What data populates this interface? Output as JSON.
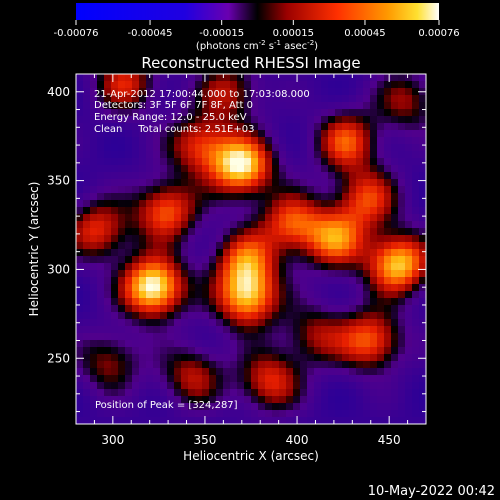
{
  "chart_data": {
    "type": "heatmap",
    "title": "Reconstructed RHESSI Image",
    "colorbar": {
      "ticks": [
        "-0.00076",
        "-0.00045",
        "-0.00015",
        "0.00015",
        "0.00045",
        "0.00076"
      ],
      "units_prefix": "(photons cm",
      "units_e1": "-2",
      "units_mid": " s",
      "units_e2": "-1",
      "units_mid2": " asec",
      "units_e3": "-2",
      "units_suffix": ")",
      "vmin": -0.00076,
      "vmax": 0.00076
    },
    "xlabel": "Heliocentric X (arcsec)",
    "ylabel": "Heliocentric Y (arcsec)",
    "xlim": [
      280,
      470
    ],
    "ylim": [
      213,
      410
    ],
    "xticks": [
      300,
      350,
      400,
      450
    ],
    "yticks": [
      250,
      300,
      350,
      400
    ],
    "annotations": [
      "21-Apr-2012 17:00:44.000 to 17:03:08.000",
      "Detectors: 3F 5F 6F 7F 8F, Att 0",
      "Energy Range: 12.0 - 25.0 keV",
      "Clean     Total counts: 2.51E+03"
    ],
    "peak_label": "Position of Peak = [324,287]",
    "peak": [
      324,
      287
    ],
    "hotspots": [
      {
        "x": 322,
        "y": 290,
        "v": 1.0
      },
      {
        "x": 370,
        "y": 358,
        "v": 0.9
      },
      {
        "x": 455,
        "y": 303,
        "v": 0.85
      },
      {
        "x": 347,
        "y": 370,
        "v": 0.55
      },
      {
        "x": 329,
        "y": 333,
        "v": 0.65
      },
      {
        "x": 372,
        "y": 305,
        "v": 0.6
      },
      {
        "x": 397,
        "y": 326,
        "v": 0.6
      },
      {
        "x": 373,
        "y": 284,
        "v": 0.8
      },
      {
        "x": 421,
        "y": 317,
        "v": 0.65
      },
      {
        "x": 427,
        "y": 372,
        "v": 0.6
      },
      {
        "x": 438,
        "y": 340,
        "v": 0.55
      },
      {
        "x": 292,
        "y": 322,
        "v": 0.55
      },
      {
        "x": 440,
        "y": 260,
        "v": 0.65
      },
      {
        "x": 385,
        "y": 237,
        "v": 0.55
      },
      {
        "x": 307,
        "y": 405,
        "v": 0.5
      },
      {
        "x": 363,
        "y": 400,
        "v": 0.45
      },
      {
        "x": 343,
        "y": 240,
        "v": 0.45
      },
      {
        "x": 298,
        "y": 248,
        "v": 0.4
      },
      {
        "x": 410,
        "y": 263,
        "v": 0.4
      },
      {
        "x": 460,
        "y": 395,
        "v": 0.4
      }
    ]
  },
  "footer": {
    "timestamp": "10-May-2022 00:42"
  }
}
